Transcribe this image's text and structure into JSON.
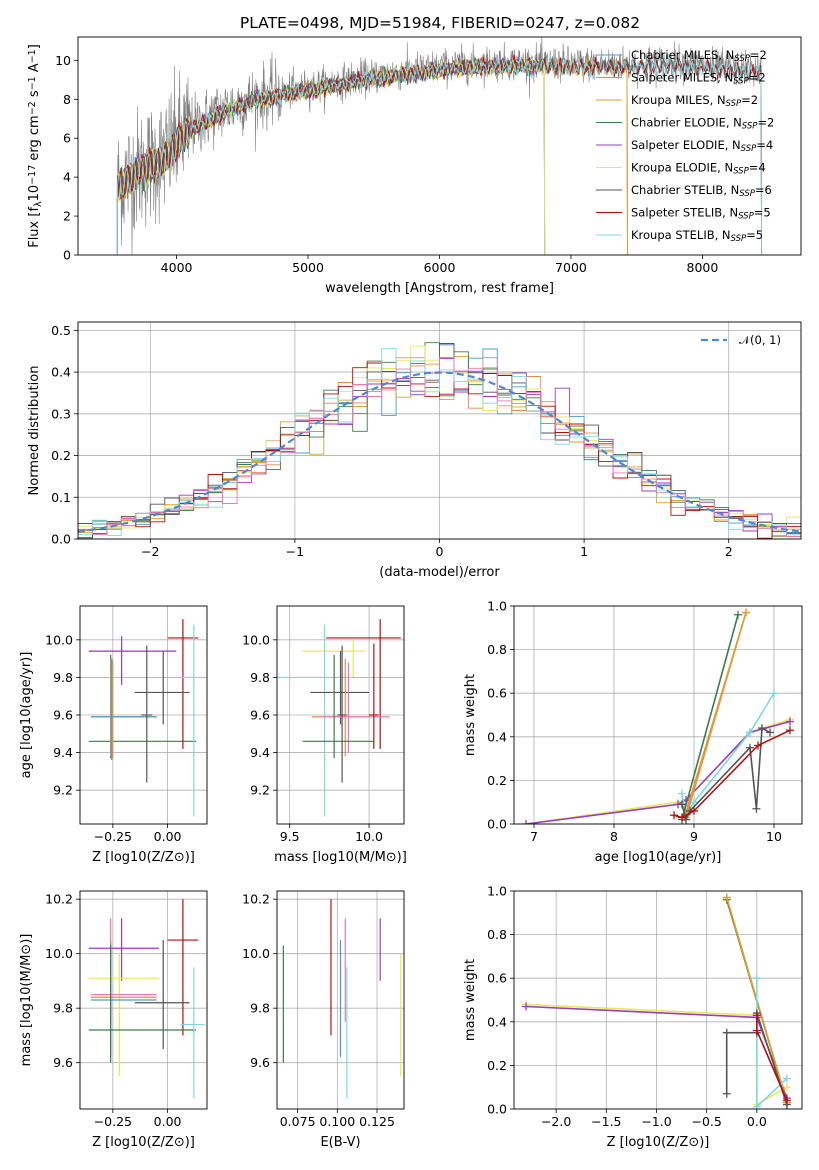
{
  "figure_title": "PLATE=0498, MJD=51984, FIBERID=0247, z=0.082",
  "colors": {
    "Chabrier MILES": "#4a9bd1",
    "Salpeter MILES": "#e88a4a",
    "Kroupa MILES": "#d9a032",
    "Chabrier ELODIE": "#3d7a4a",
    "Salpeter ELODIE": "#9a3cbf",
    "Kroupa ELODIE": "#e8e85a",
    "Chabrier STELIB": "#555555",
    "Salpeter STELIB": "#b01010",
    "Kroupa STELIB": "#7fd8e0",
    "data": "#808080",
    "gauss": "#4a8ad4",
    "extra": "#e87ab0"
  },
  "chart_data": [
    {
      "id": "spectrum",
      "type": "line",
      "xlabel": "wavelength [Angstrom, rest frame]",
      "ylabel": "Flux [f_λ 10^-17 erg cm^-2 s^-1 A^-1]",
      "xlim": [
        3250,
        8750
      ],
      "ylim": [
        0,
        11.2
      ],
      "xticks": [
        4000,
        5000,
        6000,
        7000,
        8000
      ],
      "yticks": [
        0,
        2,
        4,
        6,
        8,
        10
      ],
      "grid": false,
      "legend_position": "top-right",
      "legend": [
        {
          "model": "Chabrier MILES",
          "n": "2"
        },
        {
          "model": "Salpeter MILES",
          "n": "2"
        },
        {
          "model": "Kroupa MILES",
          "n": "2"
        },
        {
          "model": "Chabrier ELODIE",
          "n": "2"
        },
        {
          "model": "Salpeter ELODIE",
          "n": "4"
        },
        {
          "model": "Kroupa ELODIE",
          "n": "4"
        },
        {
          "model": "Chabrier STELIB",
          "n": "6"
        },
        {
          "model": "Salpeter STELIB",
          "n": "5"
        },
        {
          "model": "Kroupa STELIB",
          "n": "5"
        }
      ],
      "continuum": {
        "x": [
          3550,
          3700,
          3900,
          4050,
          4300,
          4600,
          5000,
          5400,
          5800,
          6200,
          6600,
          7000,
          7400,
          7800,
          8200,
          8450
        ],
        "y": [
          3.6,
          4.4,
          5.0,
          6.3,
          7.3,
          8.1,
          8.6,
          9.1,
          9.5,
          9.8,
          9.9,
          9.8,
          9.8,
          9.9,
          9.6,
          9.5
        ]
      },
      "spectrum_range": [
        3550,
        8450
      ],
      "model_ranges": {
        "MILES": [
          3550,
          7430
        ],
        "ELODIE": [
          3550,
          6800
        ],
        "STELIB": [
          3550,
          8450
        ]
      }
    },
    {
      "id": "residuals",
      "type": "histogram",
      "xlabel": "(data-model)/error",
      "ylabel": "Normed distribution",
      "xlim": [
        -2.5,
        2.5
      ],
      "ylim": [
        0,
        0.52
      ],
      "xticks": [
        -2,
        -1,
        0,
        1,
        2
      ],
      "yticks": [
        0.0,
        0.1,
        0.2,
        0.3,
        0.4,
        0.5
      ],
      "grid": true,
      "legend_position": "top-right",
      "legend": "𝒩(0, 1)",
      "bin_width": 0.1
    },
    {
      "id": "age_vs_Z",
      "type": "errorbar",
      "xlabel": "Z [log10(Z/Z⊙)]",
      "ylabel": "age  [log10(age/yr)]",
      "xlim": [
        -0.4,
        0.18
      ],
      "ylim": [
        9.02,
        10.18
      ],
      "xticks": [
        -0.25,
        0.0
      ],
      "yticks": [
        9.2,
        9.4,
        9.6,
        9.8,
        10.0
      ],
      "grid": true,
      "points": [
        {
          "model": "Kroupa ELODIE",
          "x": -0.21,
          "y": 9.94,
          "xlo": -0.36,
          "xhi": -0.04,
          "ylo": 9.78,
          "yhi": 10.0
        },
        {
          "model": "Salpeter ELODIE",
          "x": -0.21,
          "y": 9.94,
          "xlo": -0.36,
          "xhi": 0.04,
          "ylo": 9.76,
          "yhi": 10.02
        },
        {
          "model": "Chabrier ELODIE",
          "x": -0.26,
          "y": 9.46,
          "xlo": -0.36,
          "xhi": 0.13,
          "ylo": 9.37,
          "yhi": 9.92
        },
        {
          "model": "Salpeter MILES",
          "x": -0.26,
          "y": 9.59,
          "xlo": -0.35,
          "xhi": -0.05,
          "ylo": 9.38,
          "yhi": 9.9
        },
        {
          "model": "Kroupa MILES",
          "x": -0.25,
          "y": 9.59,
          "xlo": -0.35,
          "xhi": -0.05,
          "ylo": 9.37,
          "yhi": 9.89
        },
        {
          "model": "Chabrier MILES",
          "x": -0.255,
          "y": 9.59,
          "xlo": -0.35,
          "xhi": -0.05,
          "ylo": 9.36,
          "yhi": 9.9
        },
        {
          "model": "Salpeter STELIB",
          "x": 0.07,
          "y": 10.01,
          "xlo": 0.0,
          "xhi": 0.14,
          "ylo": 9.42,
          "yhi": 10.11
        },
        {
          "model": "Chabrier STELIB",
          "x": -0.02,
          "y": 9.72,
          "xlo": -0.15,
          "xhi": 0.1,
          "ylo": 9.55,
          "yhi": 9.94
        },
        {
          "model": "Chabrier STELIB",
          "x": -0.095,
          "y": 9.6,
          "xlo": -0.12,
          "xhi": -0.07,
          "ylo": 9.24,
          "yhi": 9.97
        },
        {
          "model": "Kroupa STELIB",
          "x": 0.12,
          "y": 9.8,
          "xlo": 0.06,
          "xhi": 0.17,
          "ylo": 9.06,
          "yhi": 10.08
        }
      ]
    },
    {
      "id": "age_vs_mass",
      "type": "errorbar",
      "xlabel": "mass [log10(M/M⊙)]",
      "ylabel": "",
      "xlim": [
        9.42,
        10.22
      ],
      "ylim": [
        9.02,
        10.18
      ],
      "xticks": [
        9.5,
        10.0
      ],
      "yticks": [
        9.2,
        9.4,
        9.6,
        9.8,
        10.0
      ],
      "grid": true,
      "points": [
        {
          "model": "Salpeter STELIB",
          "x": 10.07,
          "y": 10.01,
          "xlo": 9.73,
          "xhi": 10.2,
          "ylo": 9.42,
          "yhi": 10.11
        },
        {
          "model": "Kroupa ELODIE",
          "x": 9.9,
          "y": 9.94,
          "xlo": 9.58,
          "xhi": 9.98,
          "ylo": 9.8,
          "yhi": 10.0
        },
        {
          "model": "Kroupa STELIB",
          "x": 9.72,
          "y": 9.8,
          "xlo": 9.45,
          "xhi": 9.9,
          "ylo": 9.06,
          "yhi": 10.08
        },
        {
          "model": "Chabrier STELIB",
          "x": 9.82,
          "y": 9.72,
          "xlo": 9.63,
          "xhi": 10.0,
          "ylo": 9.55,
          "yhi": 9.94
        },
        {
          "model": "Salpeter MILES",
          "x": 9.85,
          "y": 9.59,
          "xlo": 9.64,
          "xhi": 10.02,
          "ylo": 9.38,
          "yhi": 9.9
        },
        {
          "model": "Extra",
          "x": 9.87,
          "y": 9.59,
          "xlo": 9.7,
          "xhi": 10.13,
          "ylo": 9.4,
          "yhi": 9.88
        },
        {
          "model": "Chabrier ELODIE",
          "x": 9.78,
          "y": 9.46,
          "xlo": 9.58,
          "xhi": 10.03,
          "ylo": 9.37,
          "yhi": 9.92
        },
        {
          "model": "Chabrier STELIB",
          "x": 9.83,
          "y": 9.6,
          "xlo": 9.8,
          "xhi": 9.86,
          "ylo": 9.24,
          "yhi": 9.97
        },
        {
          "model": "Salpeter STELIB",
          "x": 10.03,
          "y": 9.6,
          "xlo": 10.0,
          "xhi": 10.06,
          "ylo": 9.42,
          "yhi": 9.98
        }
      ]
    },
    {
      "id": "weight_vs_age",
      "type": "line",
      "xlabel": "age  [log10(age/yr)]",
      "ylabel": "mass weight",
      "xlim": [
        6.75,
        10.35
      ],
      "ylim": [
        0,
        1.0
      ],
      "xticks": [
        7,
        8,
        9,
        10
      ],
      "yticks": [
        0.0,
        0.2,
        0.4,
        0.6,
        0.8,
        1.0
      ],
      "grid": true,
      "series": [
        {
          "model": "Kroupa ELODIE",
          "x": [
            6.9,
            8.8,
            8.9,
            9.7,
            10.2
          ],
          "y": [
            0.0,
            0.1,
            0.11,
            0.42,
            0.48
          ]
        },
        {
          "model": "Salpeter ELODIE",
          "x": [
            6.9,
            8.8,
            8.9,
            9.7,
            10.2
          ],
          "y": [
            0.0,
            0.09,
            0.11,
            0.42,
            0.47
          ]
        },
        {
          "model": "Kroupa STELIB",
          "x": [
            8.85,
            8.9,
            9.0,
            9.7,
            10.0
          ],
          "y": [
            0.14,
            0.04,
            0.1,
            0.42,
            0.6
          ]
        },
        {
          "model": "Chabrier ELODIE",
          "x": [
            8.85,
            9.55
          ],
          "y": [
            0.02,
            0.96
          ]
        },
        {
          "model": "Salpeter MILES",
          "x": [
            8.88,
            9.65
          ],
          "y": [
            0.03,
            0.97
          ]
        },
        {
          "model": "Kroupa MILES",
          "x": [
            8.9,
            9.65
          ],
          "y": [
            0.03,
            0.97
          ]
        },
        {
          "model": "Chabrier STELIB",
          "x": [
            8.85,
            8.9,
            8.95,
            9.7,
            9.78,
            9.85,
            9.95
          ],
          "y": [
            0.09,
            0.02,
            0.06,
            0.35,
            0.07,
            0.44,
            0.42
          ]
        },
        {
          "model": "Salpeter STELIB",
          "x": [
            8.75,
            8.85,
            9.0,
            9.8,
            10.2
          ],
          "y": [
            0.04,
            0.03,
            0.06,
            0.36,
            0.43
          ]
        }
      ]
    },
    {
      "id": "mass_vs_Z",
      "type": "errorbar",
      "xlabel": "Z [log10(Z/Z⊙)]",
      "ylabel": "mass [log10(M/M⊙)]",
      "xlim": [
        -0.4,
        0.18
      ],
      "ylim": [
        9.43,
        10.23
      ],
      "xticks": [
        -0.25,
        0.0
      ],
      "yticks": [
        9.6,
        9.8,
        10.0,
        10.2
      ],
      "grid": true,
      "points": [
        {
          "model": "Salpeter ELODIE",
          "x": -0.21,
          "y": 10.02,
          "xlo": -0.36,
          "xhi": -0.04,
          "ylo": 9.9,
          "yhi": 10.13
        },
        {
          "model": "Salpeter STELIB",
          "x": 0.07,
          "y": 10.05,
          "xlo": 0.0,
          "xhi": 0.14,
          "ylo": 9.7,
          "yhi": 10.2
        },
        {
          "model": "Kroupa ELODIE",
          "x": -0.22,
          "y": 9.91,
          "xlo": -0.36,
          "xhi": -0.04,
          "ylo": 9.55,
          "yhi": 10.0
        },
        {
          "model": "Extra",
          "x": -0.26,
          "y": 9.85,
          "xlo": -0.35,
          "xhi": -0.05,
          "ylo": 9.75,
          "yhi": 10.13
        },
        {
          "model": "Salpeter MILES",
          "x": -0.26,
          "y": 9.84,
          "xlo": -0.35,
          "xhi": -0.05,
          "ylo": 9.63,
          "yhi": 10.05
        },
        {
          "model": "Chabrier MILES",
          "x": -0.26,
          "y": 9.83,
          "xlo": -0.35,
          "xhi": -0.05,
          "ylo": 9.62,
          "yhi": 10.04
        },
        {
          "model": "Chabrier STELIB",
          "x": -0.02,
          "y": 9.82,
          "xlo": -0.15,
          "xhi": 0.1,
          "ylo": 9.65,
          "yhi": 10.05
        },
        {
          "model": "Chabrier ELODIE",
          "x": -0.26,
          "y": 9.72,
          "xlo": -0.36,
          "xhi": 0.13,
          "ylo": 9.6,
          "yhi": 10.03
        },
        {
          "model": "Kroupa STELIB",
          "x": 0.12,
          "y": 9.74,
          "xlo": 0.06,
          "xhi": 0.17,
          "ylo": 9.47,
          "yhi": 9.95
        }
      ]
    },
    {
      "id": "mass_vs_ebv",
      "type": "errorbar",
      "xlabel": "E(B-V)",
      "ylabel": "",
      "xlim": [
        0.062,
        0.142
      ],
      "ylim": [
        9.43,
        10.23
      ],
      "xticks": [
        0.075,
        0.1,
        0.125
      ],
      "xticklabels": [
        "0.075",
        "0.100",
        "0.125"
      ],
      "yticks": [
        9.6,
        9.8,
        10.0,
        10.2
      ],
      "grid": true,
      "points": [
        {
          "model": "Chabrier ELODIE",
          "x": 0.066,
          "ylo": 9.6,
          "yhi": 10.03
        },
        {
          "model": "Salpeter STELIB",
          "x": 0.096,
          "ylo": 9.7,
          "yhi": 10.2
        },
        {
          "model": "Chabrier MILES",
          "x": 0.102,
          "ylo": 9.62,
          "yhi": 10.05
        },
        {
          "model": "Kroupa STELIB",
          "x": 0.106,
          "ylo": 9.47,
          "yhi": 9.95
        },
        {
          "model": "Extra",
          "x": 0.105,
          "ylo": 9.75,
          "yhi": 10.13
        },
        {
          "model": "Salpeter ELODIE",
          "x": 0.127,
          "ylo": 9.9,
          "yhi": 10.13
        },
        {
          "model": "Kroupa ELODIE",
          "x": 0.14,
          "ylo": 9.55,
          "yhi": 10.0
        }
      ]
    },
    {
      "id": "weight_vs_Z",
      "type": "line",
      "xlabel": "Z [log10(Z/Z⊙)]",
      "ylabel": "mass weight",
      "xlim": [
        -2.42,
        0.45
      ],
      "ylim": [
        0,
        1.0
      ],
      "xticks": [
        -2.0,
        -1.5,
        -1.0,
        -0.5,
        0.0
      ],
      "xticklabels": [
        "−2.0",
        "−1.5",
        "−1.0",
        "−0.5",
        "0.0"
      ],
      "yticks": [
        0.0,
        0.2,
        0.4,
        0.6,
        0.8,
        1.0
      ],
      "grid": true,
      "series": [
        {
          "model": "Kroupa ELODIE",
          "x": [
            -2.3,
            0.0,
            0.0,
            0.3
          ],
          "y": [
            0.48,
            0.43,
            0.02,
            0.1
          ]
        },
        {
          "model": "Salpeter ELODIE",
          "x": [
            -2.3,
            0.0,
            0.3
          ],
          "y": [
            0.47,
            0.42,
            0.05
          ]
        },
        {
          "model": "Chabrier ELODIE",
          "x": [
            -0.3,
            0.3
          ],
          "y": [
            0.96,
            0.03
          ]
        },
        {
          "model": "Salpeter MILES",
          "x": [
            -0.3,
            0.3
          ],
          "y": [
            0.97,
            0.03
          ]
        },
        {
          "model": "Kroupa MILES",
          "x": [
            -0.3,
            0.3
          ],
          "y": [
            0.97,
            0.03
          ]
        },
        {
          "model": "Kroupa STELIB",
          "x": [
            0.0,
            0.0,
            0.3
          ],
          "y": [
            0.6,
            0.01,
            0.14
          ]
        },
        {
          "model": "Chabrier STELIB",
          "x": [
            -0.3,
            -0.3,
            0.0,
            0.0,
            0.3
          ],
          "y": [
            0.07,
            0.35,
            0.35,
            0.44,
            0.02
          ]
        },
        {
          "model": "Salpeter STELIB",
          "x": [
            0.0,
            0.0,
            0.3
          ],
          "y": [
            0.43,
            0.36,
            0.04
          ]
        }
      ]
    }
  ]
}
